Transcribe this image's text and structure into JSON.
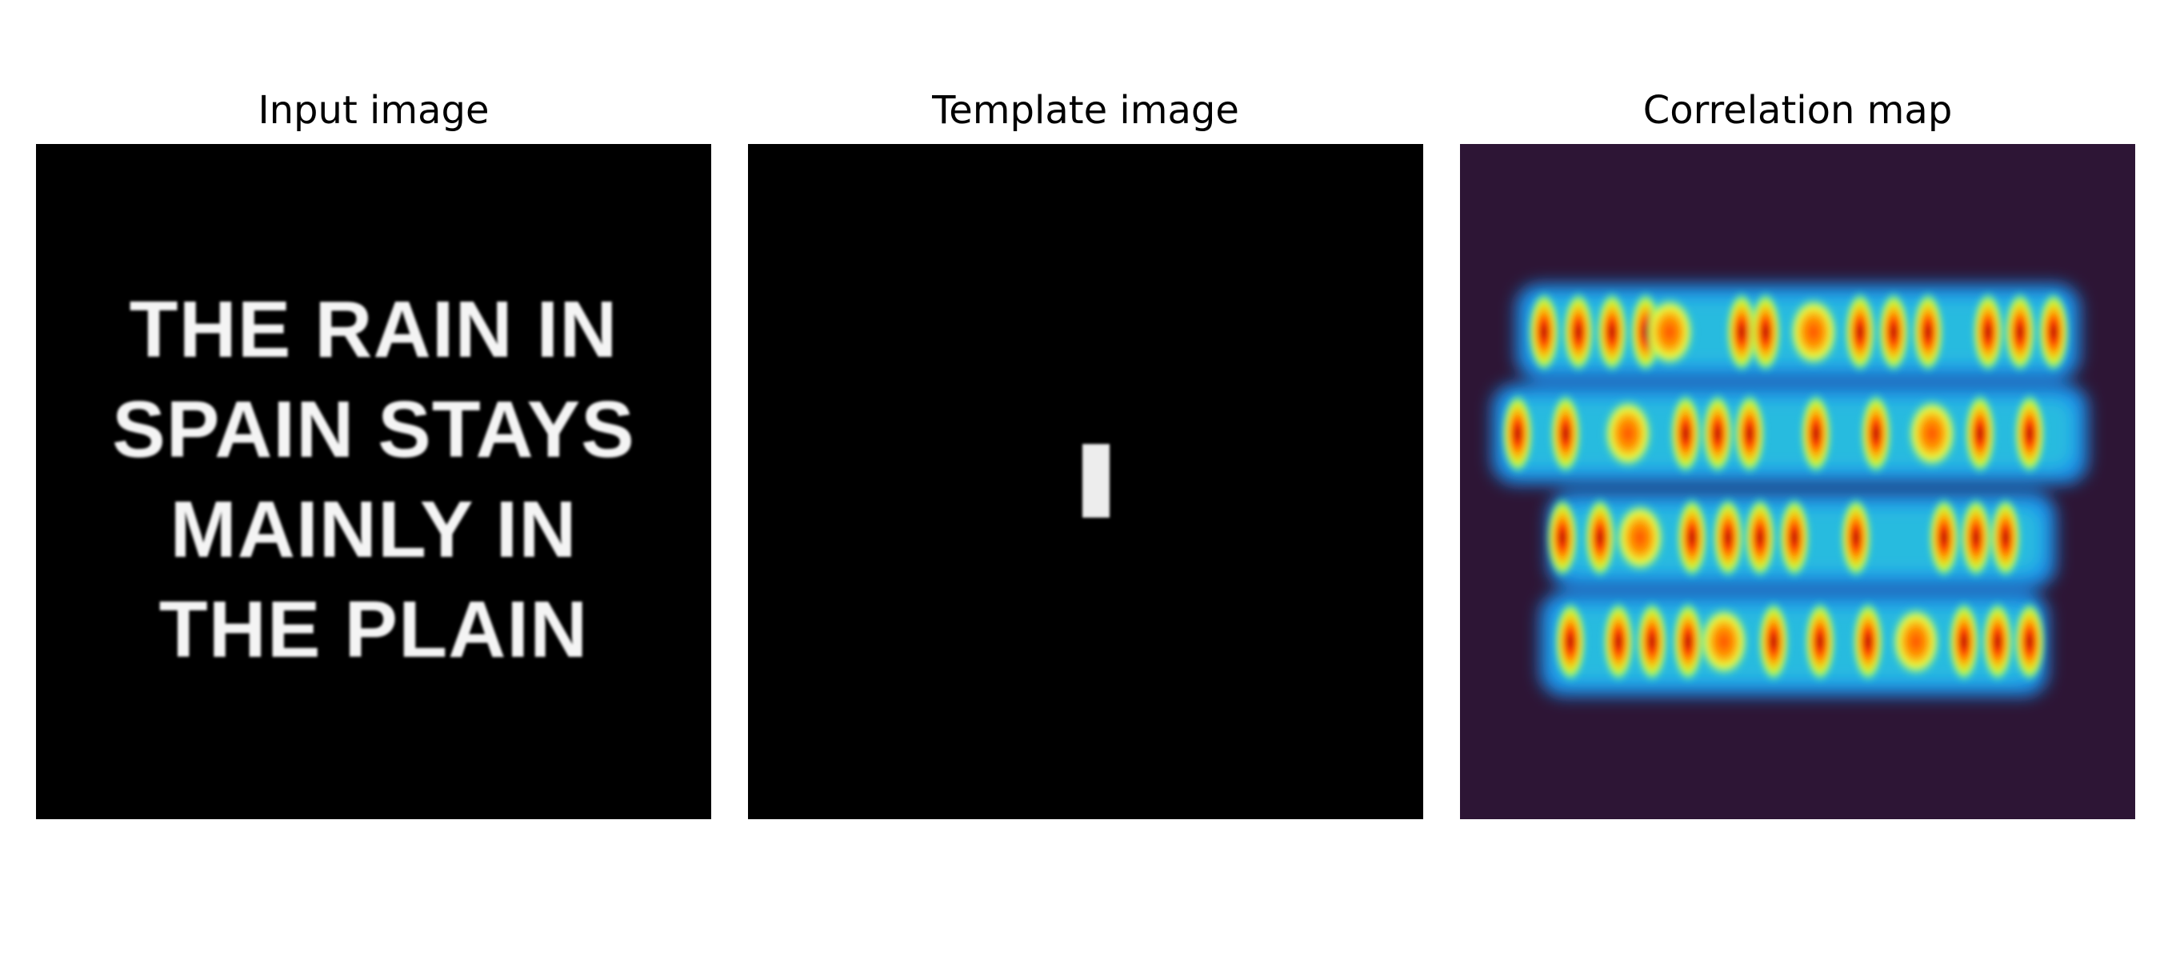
{
  "panels": {
    "input": {
      "title": "Input image",
      "lines": [
        "THE RAIN IN",
        "SPAIN STAYS",
        "MAINLY IN",
        "THE PLAIN"
      ]
    },
    "template": {
      "title": "Template image",
      "glyph": "I"
    },
    "correlation": {
      "title": "Correlation map",
      "colormap": "jet-like",
      "background": "#2d1535"
    }
  }
}
